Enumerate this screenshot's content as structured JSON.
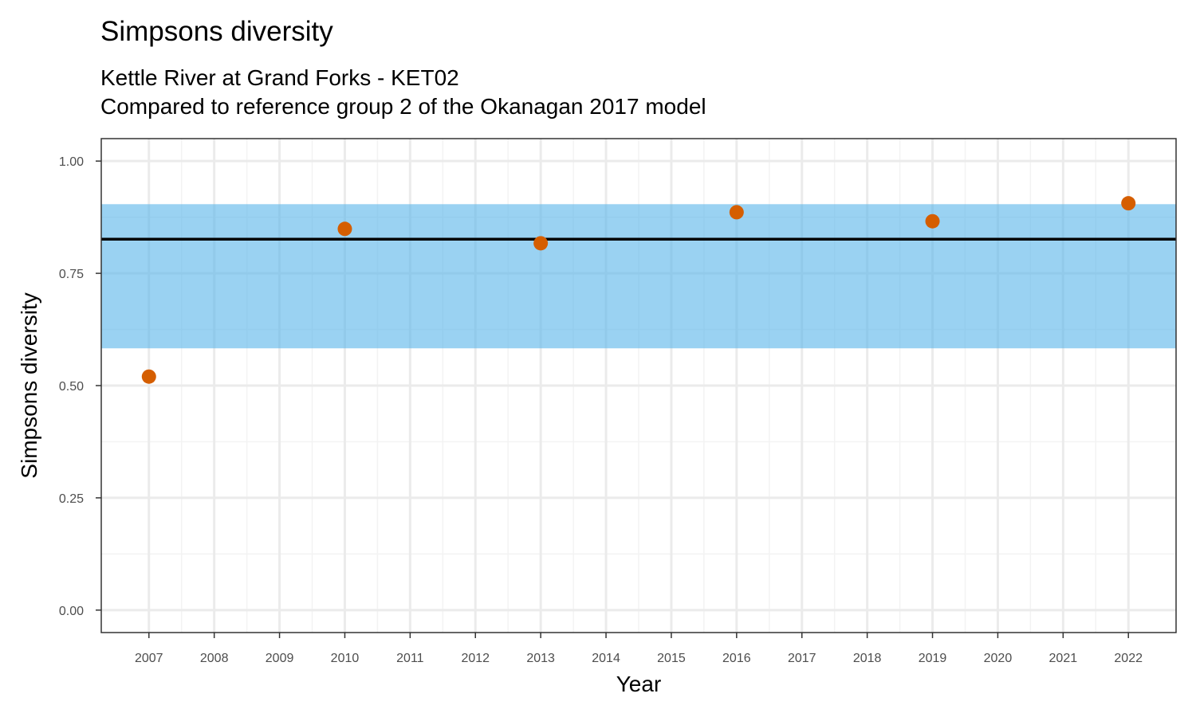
{
  "chart_data": {
    "type": "scatter",
    "title": "Simpsons diversity",
    "subtitle": [
      "Kettle River at Grand Forks - KET02",
      "Compared to reference group 2 of the Okanagan 2017 model"
    ],
    "xlabel": "Year",
    "ylabel": "Simpsons diversity",
    "x_ticks": [
      2007,
      2008,
      2009,
      2010,
      2011,
      2012,
      2013,
      2014,
      2015,
      2016,
      2017,
      2018,
      2019,
      2020,
      2021,
      2022
    ],
    "x_tick_labels": [
      "2007",
      "2008",
      "2009",
      "2010",
      "2011",
      "2012",
      "2013",
      "2014",
      "2015",
      "2016",
      "2017",
      "2018",
      "2019",
      "2020",
      "2021",
      "2022"
    ],
    "y_ticks": [
      0,
      0.25,
      0.5,
      0.75,
      1.0
    ],
    "y_tick_labels": [
      "0.00",
      "0.25",
      "0.50",
      "0.75",
      "1.00"
    ],
    "xlim": [
      2006.27,
      2022.73
    ],
    "ylim": [
      -0.05,
      1.05
    ],
    "grid": true,
    "points": [
      {
        "x": 2007,
        "y": 0.52
      },
      {
        "x": 2010,
        "y": 0.849
      },
      {
        "x": 2013,
        "y": 0.817
      },
      {
        "x": 2016,
        "y": 0.886
      },
      {
        "x": 2019,
        "y": 0.866
      },
      {
        "x": 2022,
        "y": 0.906
      }
    ],
    "reference_band": {
      "ymin": 0.583,
      "ymax": 0.904
    },
    "reference_line": {
      "y": 0.826
    },
    "colors": {
      "points": "#D55E00",
      "band": "#56B4E9",
      "line": "#000000",
      "grid_major": "#ebebeb",
      "grid_minor": "#f3f3f3",
      "panel_border": "#333333"
    }
  }
}
